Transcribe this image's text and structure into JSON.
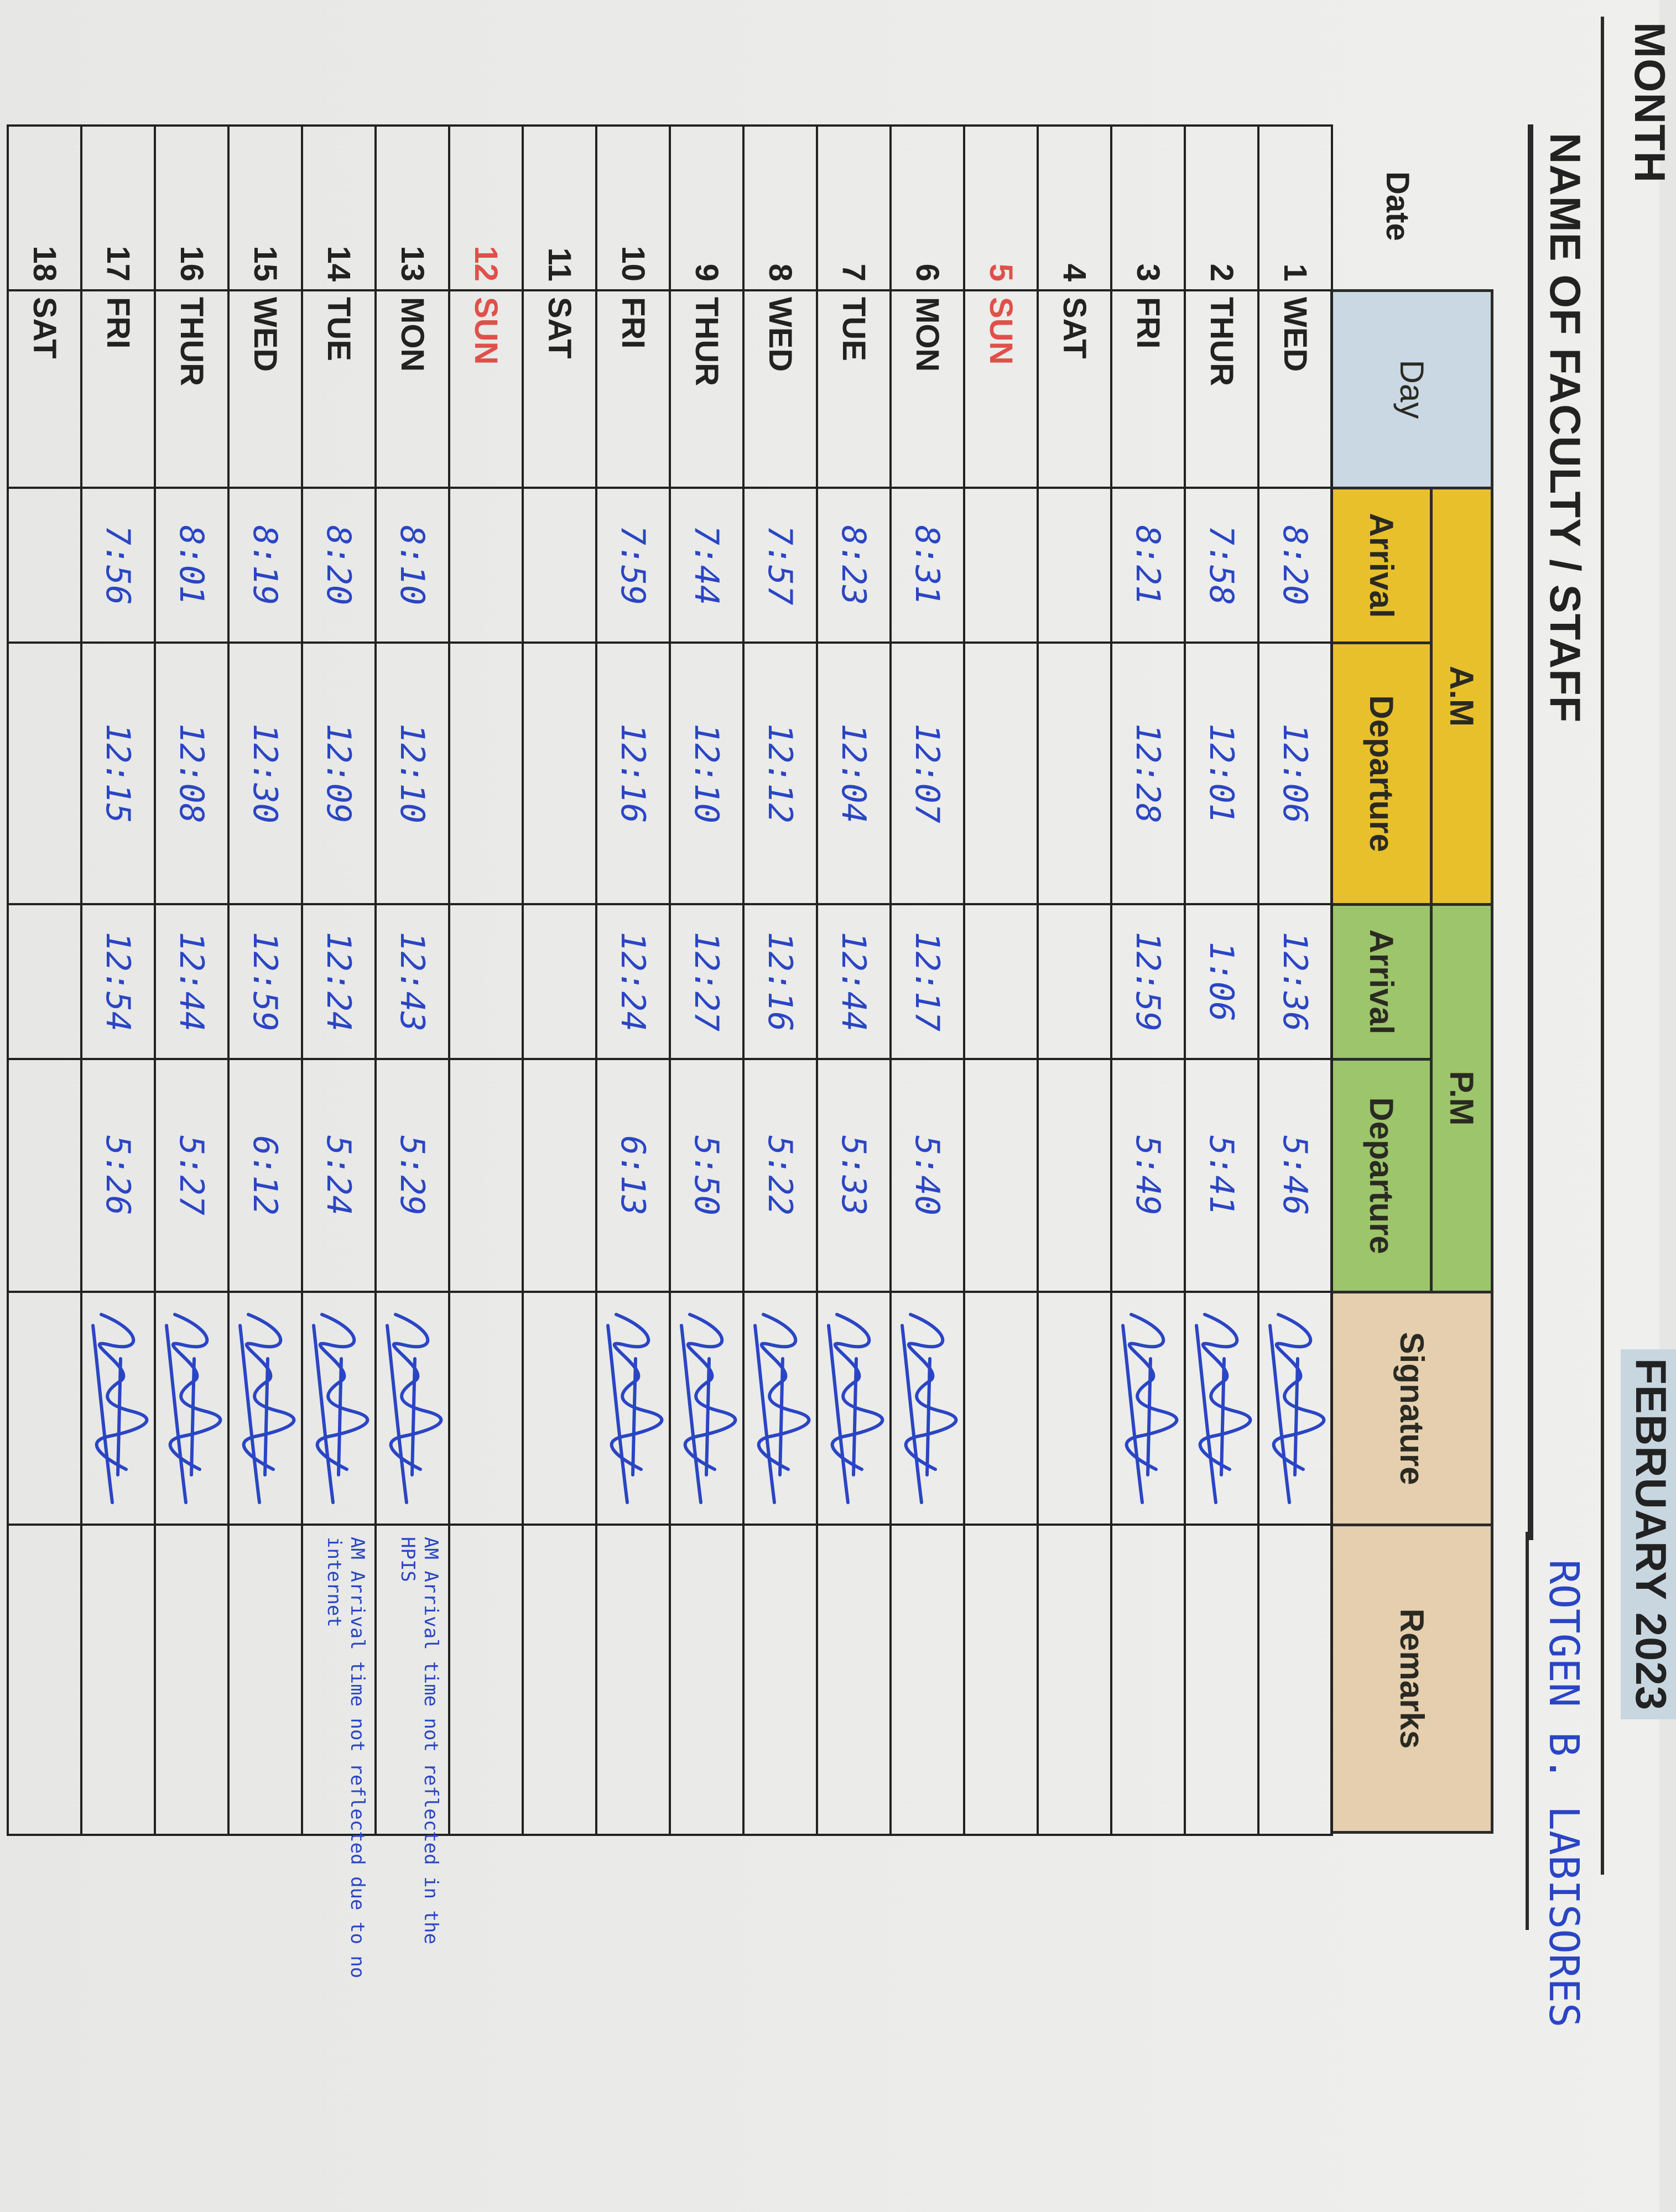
{
  "header": {
    "month_label": "MONTH",
    "month_value": "FEBRUARY 2023",
    "name_label": "NAME OF FACULTY / STAFF",
    "name_value": "ROTGEN B. LABISORES"
  },
  "table": {
    "date_label": "Date",
    "day_label": "Day",
    "am_label": "A.M",
    "pm_label": "P.M",
    "am_arrival_label": "Arrival",
    "am_departure_label": "Departure",
    "pm_arrival_label": "Arrival",
    "pm_departure_label": "Departure",
    "signature_label": "Signature",
    "remarks_label": "Remarks"
  },
  "colors": {
    "day_header": "#c9d8e2",
    "am_header": "#e8c02c",
    "pm_header": "#9dc56b",
    "signature_header": "#e5cfae",
    "sunday_text": "#e0504a",
    "ink": "#2a45c4"
  },
  "rows": [
    {
      "date": "1",
      "day": "WED",
      "am_arrival": "8:20",
      "am_departure": "12:06",
      "pm_arrival": "12:36",
      "pm_departure": "5:46",
      "signed": true,
      "remarks": ""
    },
    {
      "date": "2",
      "day": "THUR",
      "am_arrival": "7:58",
      "am_departure": "12:01",
      "pm_arrival": "1:06",
      "pm_departure": "5:41",
      "signed": true,
      "remarks": ""
    },
    {
      "date": "3",
      "day": "FRI",
      "am_arrival": "8:21",
      "am_departure": "12:28",
      "pm_arrival": "12:59",
      "pm_departure": "5:49",
      "signed": true,
      "remarks": ""
    },
    {
      "date": "4",
      "day": "SAT",
      "am_arrival": "",
      "am_departure": "",
      "pm_arrival": "",
      "pm_departure": "",
      "signed": false,
      "remarks": ""
    },
    {
      "date": "5",
      "day": "SUN",
      "am_arrival": "",
      "am_departure": "",
      "pm_arrival": "",
      "pm_departure": "",
      "signed": false,
      "remarks": ""
    },
    {
      "date": "6",
      "day": "MON",
      "am_arrival": "8:31",
      "am_departure": "12:07",
      "pm_arrival": "12:17",
      "pm_departure": "5:40",
      "signed": true,
      "remarks": ""
    },
    {
      "date": "7",
      "day": "TUE",
      "am_arrival": "8:23",
      "am_departure": "12:04",
      "pm_arrival": "12:44",
      "pm_departure": "5:33",
      "signed": true,
      "remarks": ""
    },
    {
      "date": "8",
      "day": "WED",
      "am_arrival": "7:57",
      "am_departure": "12:12",
      "pm_arrival": "12:16",
      "pm_departure": "5:22",
      "signed": true,
      "remarks": ""
    },
    {
      "date": "9",
      "day": "THUR",
      "am_arrival": "7:44",
      "am_departure": "12:10",
      "pm_arrival": "12:27",
      "pm_departure": "5:50",
      "signed": true,
      "remarks": ""
    },
    {
      "date": "10",
      "day": "FRI",
      "am_arrival": "7:59",
      "am_departure": "12:16",
      "pm_arrival": "12:24",
      "pm_departure": "6:13",
      "signed": true,
      "remarks": ""
    },
    {
      "date": "11",
      "day": "SAT",
      "am_arrival": "",
      "am_departure": "",
      "pm_arrival": "",
      "pm_departure": "",
      "signed": false,
      "remarks": ""
    },
    {
      "date": "12",
      "day": "SUN",
      "am_arrival": "",
      "am_departure": "",
      "pm_arrival": "",
      "pm_departure": "",
      "signed": false,
      "remarks": ""
    },
    {
      "date": "13",
      "day": "MON",
      "am_arrival": "8:10",
      "am_departure": "12:10",
      "pm_arrival": "12:43",
      "pm_departure": "5:29",
      "signed": true,
      "remarks": "AM Arrival time not reflected in the HPIS"
    },
    {
      "date": "14",
      "day": "TUE",
      "am_arrival": "8:20",
      "am_departure": "12:09",
      "pm_arrival": "12:24",
      "pm_departure": "5:24",
      "signed": true,
      "remarks": "AM Arrival time not reflected due to no internet"
    },
    {
      "date": "15",
      "day": "WED",
      "am_arrival": "8:19",
      "am_departure": "12:30",
      "pm_arrival": "12:59",
      "pm_departure": "6:12",
      "signed": true,
      "remarks": ""
    },
    {
      "date": "16",
      "day": "THUR",
      "am_arrival": "8:01",
      "am_departure": "12:08",
      "pm_arrival": "12:44",
      "pm_departure": "5:27",
      "signed": true,
      "remarks": ""
    },
    {
      "date": "17",
      "day": "FRI",
      "am_arrival": "7:56",
      "am_departure": "12:15",
      "pm_arrival": "12:54",
      "pm_departure": "5:26",
      "signed": true,
      "remarks": ""
    },
    {
      "date": "18",
      "day": "SAT",
      "am_arrival": "",
      "am_departure": "",
      "pm_arrival": "",
      "pm_departure": "",
      "signed": false,
      "remarks": ""
    }
  ]
}
